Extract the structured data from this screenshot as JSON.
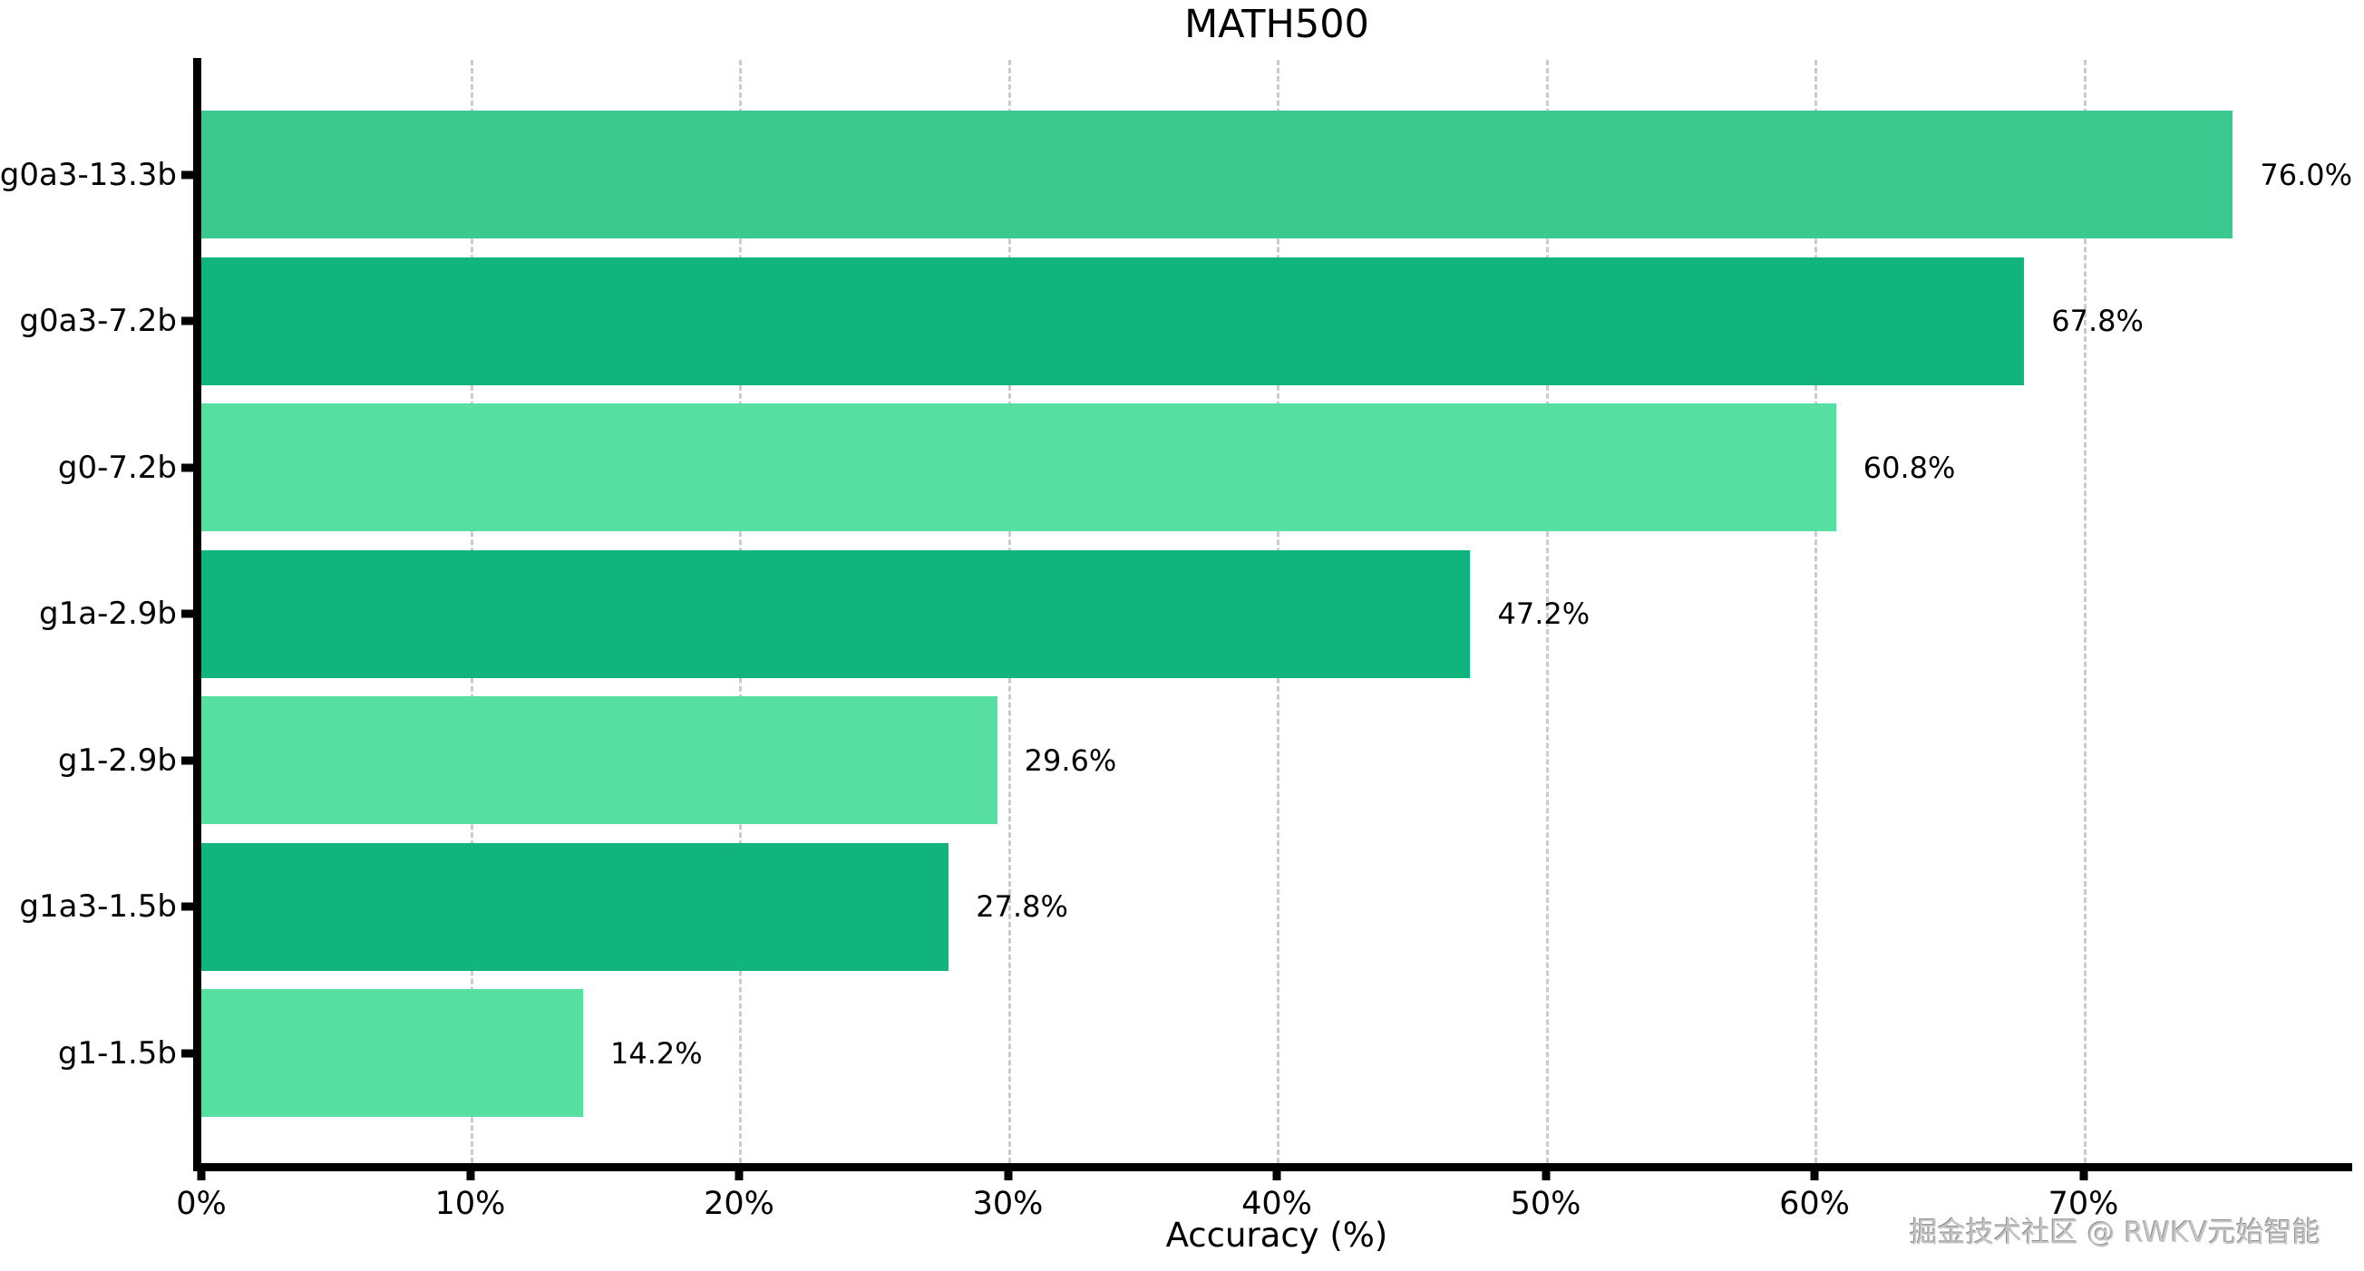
{
  "chart_data": {
    "type": "bar",
    "orientation": "horizontal",
    "title": "MATH500",
    "xlabel": "Accuracy (%)",
    "ylabel": "",
    "categories": [
      "g0a3-13.3b",
      "g0a3-7.2b",
      "g0-7.2b",
      "g1a-2.9b",
      "g1-2.9b",
      "g1a3-1.5b",
      "g1-1.5b"
    ],
    "values": [
      76.0,
      67.8,
      60.8,
      47.2,
      29.6,
      27.8,
      14.2
    ],
    "value_labels": [
      "76.0%",
      "67.8%",
      "60.8%",
      "47.2%",
      "29.6%",
      "27.8%",
      "14.2%"
    ],
    "bar_colors": [
      "#3bc98f",
      "#12b47e",
      "#57dfa1",
      "#12b47e",
      "#57dfa1",
      "#12b47e",
      "#57dfa1"
    ],
    "xlim": [
      0,
      80
    ],
    "xticks": [
      {
        "value": 0,
        "label": "0%"
      },
      {
        "value": 10,
        "label": "10%"
      },
      {
        "value": 20,
        "label": "20%"
      },
      {
        "value": 30,
        "label": "30%"
      },
      {
        "value": 40,
        "label": "40%"
      },
      {
        "value": 50,
        "label": "50%"
      },
      {
        "value": 60,
        "label": "60%"
      },
      {
        "value": 70,
        "label": "70%"
      }
    ],
    "grid": "vertical-dashed",
    "legend": null
  },
  "watermark": {
    "text": "掘金技术社区 @ RWKV元始智能"
  },
  "colors": {
    "background": "#ffffff",
    "axis": "#000000",
    "gridline": "#cbcbcb",
    "text": "#000000",
    "watermark_gray": "#c4c4c4"
  }
}
